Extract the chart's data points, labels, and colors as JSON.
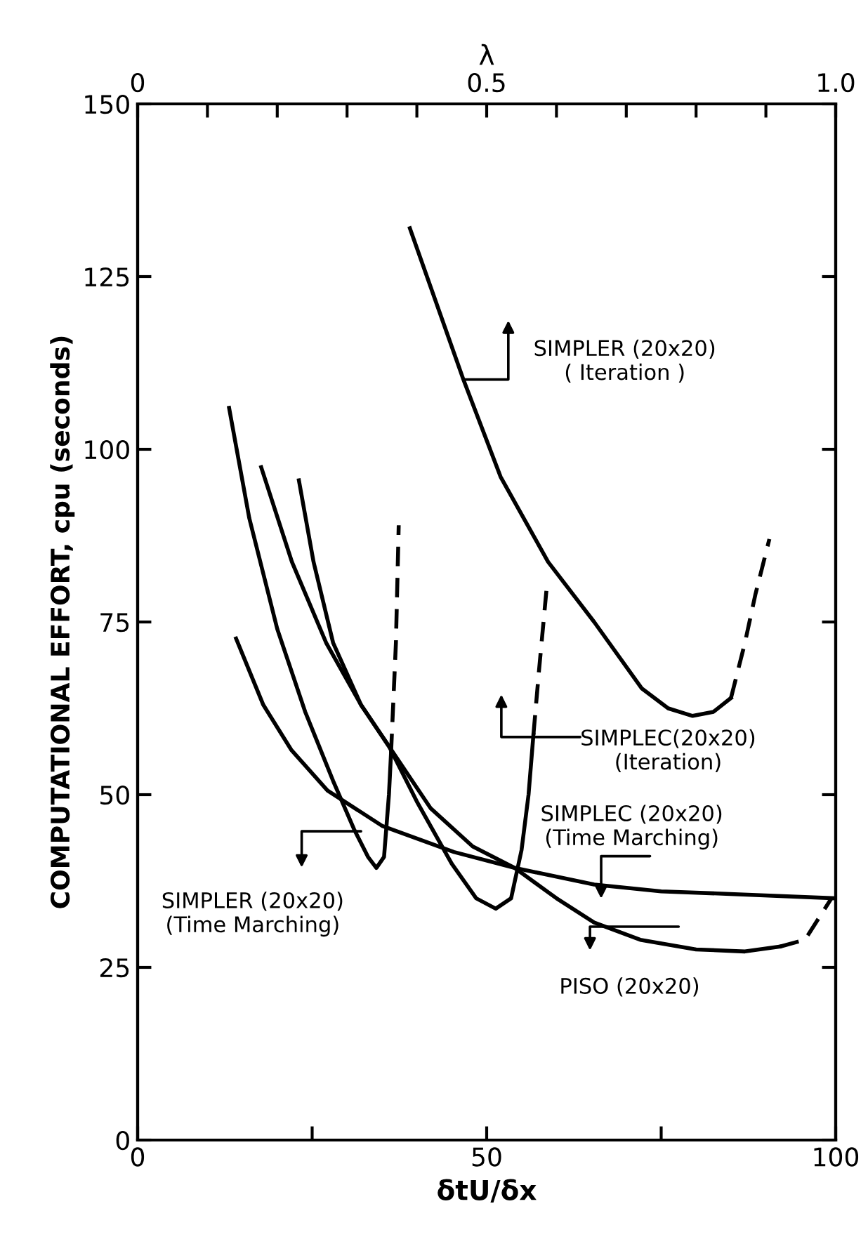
{
  "chart_data": {
    "type": "line",
    "xlabel": "δtU/δx",
    "ylabel": "COMPUTATIONAL EFFORT, cpu (seconds)",
    "x2label": "λ",
    "xlim": [
      0,
      100
    ],
    "xticks": [
      0,
      {
        "value": 25,
        "label": null
      },
      50,
      {
        "value": 75,
        "label": null
      },
      100
    ],
    "ylim": [
      0,
      150
    ],
    "yticks": [
      0,
      25,
      50,
      75,
      100,
      125,
      150
    ],
    "x2lim": [
      0,
      1
    ],
    "x2ticks": [
      0,
      {
        "value": 0.1,
        "label": null
      },
      {
        "value": 0.2,
        "label": null
      },
      {
        "value": 0.3,
        "label": null
      },
      {
        "value": 0.4,
        "label": null
      },
      0.5,
      {
        "value": 0.6,
        "label": null
      },
      {
        "value": 0.7,
        "label": null
      },
      {
        "value": 0.8,
        "label": null
      },
      {
        "value": 0.9,
        "label": null
      },
      {
        "value": 1,
        "label": "1.0"
      }
    ],
    "grid": false,
    "marker": "none",
    "series": [
      {
        "color": "#000000",
        "line_style": "solid",
        "x": [
          39,
          46.7,
          52,
          58.8,
          65.4,
          72.2,
          76,
          79.5,
          82.5,
          85
        ],
        "values": [
          132,
          110,
          96,
          83.7,
          75,
          65.4,
          62.5,
          61.4,
          62,
          64
        ]
      },
      {
        "color": "#000000",
        "line_style": "dashed",
        "x": [
          85,
          87,
          88.5,
          90.5
        ],
        "values": [
          64,
          72,
          79,
          87
        ]
      },
      {
        "color": "#000000",
        "line_style": "solid",
        "x": [
          23.1,
          25.2,
          28,
          32,
          36,
          40,
          45,
          48.5,
          51.3,
          53.5,
          55,
          56,
          56.7
        ],
        "values": [
          95.5,
          83.7,
          72,
          63,
          57,
          49,
          40,
          35,
          33.5,
          35,
          42,
          50,
          58.7
        ]
      },
      {
        "color": "#000000",
        "line_style": "dashed",
        "x": [
          56.7,
          57.5,
          58.6
        ],
        "values": [
          58.7,
          68,
          80
        ]
      },
      {
        "color": "#000000",
        "line_style": "solid",
        "x": [
          17.7,
          22.1,
          27,
          32,
          36,
          42,
          48,
          54,
          60,
          65.4,
          72,
          80,
          87,
          92
        ],
        "values": [
          97.4,
          83.7,
          72,
          63,
          57,
          48,
          42.5,
          39.4,
          35,
          31.5,
          29,
          27.6,
          27.3,
          28
        ]
      },
      {
        "color": "#000000",
        "line_style": "dashed",
        "x": [
          92,
          95.6,
          99.4
        ],
        "values": [
          28,
          29,
          35
        ]
      },
      {
        "color": "#000000",
        "line_style": "solid",
        "x": [
          13.1,
          16,
          20,
          24,
          28,
          31,
          33,
          34.2,
          35.3,
          36,
          36.3
        ],
        "values": [
          106,
          90,
          74,
          62,
          52,
          45,
          41,
          39.4,
          41,
          50,
          56
        ]
      },
      {
        "color": "#000000",
        "line_style": "dashed",
        "x": [
          36.3,
          37,
          37.4
        ],
        "values": [
          56,
          72,
          89
        ]
      },
      {
        "color": "#000000",
        "line_style": "solid",
        "x": [
          14.1,
          18,
          22,
          27.2,
          35,
          45.3,
          54,
          65.4,
          75,
          85.5,
          100
        ],
        "values": [
          72.6,
          63,
          56.5,
          50.6,
          45.5,
          41.7,
          39.4,
          37,
          36,
          35.6,
          35
        ]
      }
    ],
    "annotations": [
      "SIMPLER (20x20)\n( Iteration )",
      "SIMPLEC(20x20)\n(Iteration)",
      "SIMPLEC (20x20)\n(Time Marching)",
      "SIMPLER (20x20)\n(Time Marching)",
      "PISO (20x20)"
    ]
  }
}
